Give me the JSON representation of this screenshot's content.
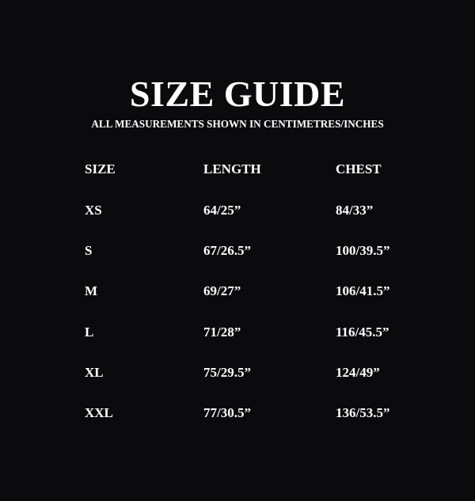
{
  "title": "SIZE GUIDE",
  "subtitle": "ALL MEASUREMENTS SHOWN IN CENTIMETRES/INCHES",
  "table": {
    "headers": [
      "SIZE",
      "LENGTH",
      "CHEST"
    ],
    "rows": [
      [
        "XS",
        "64/25”",
        "84/33”"
      ],
      [
        "S",
        "67/26.5”",
        "100/39.5”"
      ],
      [
        "M",
        "69/27”",
        "106/41.5”"
      ],
      [
        "L",
        "71/28”",
        "116/45.5”"
      ],
      [
        "XL",
        "75/29.5”",
        "124/49”"
      ],
      [
        "XXL",
        "77/30.5”",
        "136/53.5”"
      ]
    ]
  }
}
